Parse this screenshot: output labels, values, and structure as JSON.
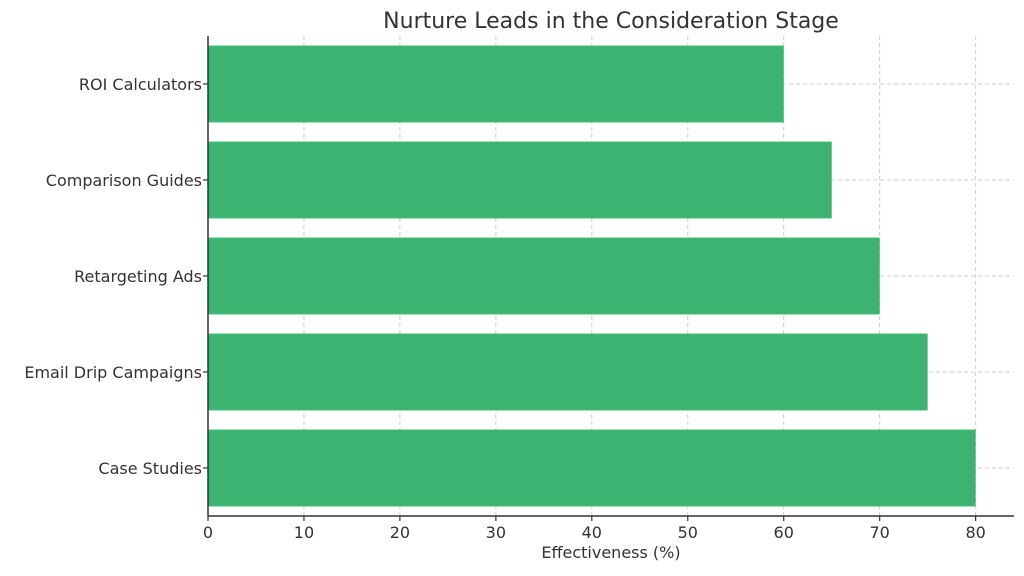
{
  "chart_data": {
    "type": "bar",
    "orientation": "horizontal",
    "title": "Nurture Leads in the Consideration Stage",
    "xlabel": "Effectiveness (%)",
    "ylabel": "",
    "categories": [
      "Case Studies",
      "Email Drip Campaigns",
      "Retargeting Ads",
      "Comparison Guides",
      "ROI Calculators"
    ],
    "values": [
      80,
      75,
      70,
      65,
      60
    ],
    "xlim": [
      0,
      84
    ],
    "xticks": [
      0,
      10,
      20,
      30,
      40,
      50,
      60,
      70,
      80
    ],
    "grid": true,
    "bar_color": "#3cb371"
  }
}
